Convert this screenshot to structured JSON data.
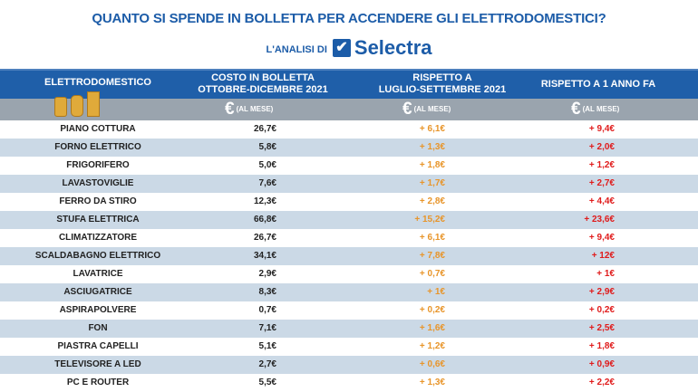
{
  "header": {
    "title": "QUANTO SI SPENDE IN BOLLETTA PER ACCENDERE GLI ELETTRODOMESTICI?",
    "subtitle": "L'ANALISI DI",
    "brand": "Selectra"
  },
  "colors": {
    "blue": "#1f5fa9",
    "grey": "#9aa4ae",
    "orange": "#e8952a",
    "red": "#e01b1b",
    "row_alt": "#cbd9e6"
  },
  "chart_data": {
    "type": "table",
    "columns": [
      "ELETTRODOMESTICO",
      "COSTO IN BOLLETTA OTTOBRE-DICEMBRE 2021",
      "RISPETTO A LUGLIO-SETTEMBRE 2021",
      "RISPETTO A 1 ANNO FA"
    ],
    "column_lines": [
      [
        "ELETTRODOMESTICO"
      ],
      [
        "COSTO IN BOLLETTA",
        "OTTOBRE-DICEMBRE 2021"
      ],
      [
        "RISPETTO A",
        "LUGLIO-SETTEMBRE 2021"
      ],
      [
        "RISPETTO A 1 ANNO FA"
      ]
    ],
    "unit_symbol": "€",
    "unit_label": "(AL MESE)",
    "rows": [
      [
        "PIANO COTTURA",
        "26,7€",
        "+ 6,1€",
        "+ 9,4€"
      ],
      [
        "FORNO ELETTRICO",
        "5,8€",
        "+ 1,3€",
        "+ 2,0€"
      ],
      [
        "FRIGORIFERO",
        "5,0€",
        "+ 1,8€",
        "+ 1,2€"
      ],
      [
        "LAVASTOVIGLIE",
        "7,6€",
        "+ 1,7€",
        "+ 2,7€"
      ],
      [
        "FERRO DA STIRO",
        "12,3€",
        "+ 2,8€",
        "+ 4,4€"
      ],
      [
        "STUFA ELETTRICA",
        "66,8€",
        "+ 15,2€",
        "+ 23,6€"
      ],
      [
        "CLIMATIZZATORE",
        "26,7€",
        "+ 6,1€",
        "+ 9,4€"
      ],
      [
        "SCALDABAGNO ELETTRICO",
        "34,1€",
        "+ 7,8€",
        "+ 12€"
      ],
      [
        "LAVATRICE",
        "2,9€",
        "+ 0,7€",
        "+ 1€"
      ],
      [
        "ASCIUGATRICE",
        "8,3€",
        "+ 1€",
        "+ 2,9€"
      ],
      [
        "ASPIRAPOLVERE",
        "0,7€",
        "+ 0,2€",
        "+ 0,2€"
      ],
      [
        "FON",
        "7,1€",
        "+ 1,6€",
        "+ 2,5€"
      ],
      [
        "PIASTRA CAPELLI",
        "5,1€",
        "+ 1,2€",
        "+ 1,8€"
      ],
      [
        "TELEVISORE A LED",
        "2,7€",
        "+ 0,6€",
        "+ 0,9€"
      ],
      [
        "PC E ROUTER",
        "5,5€",
        "+ 1,3€",
        "+ 2,2€"
      ]
    ]
  }
}
